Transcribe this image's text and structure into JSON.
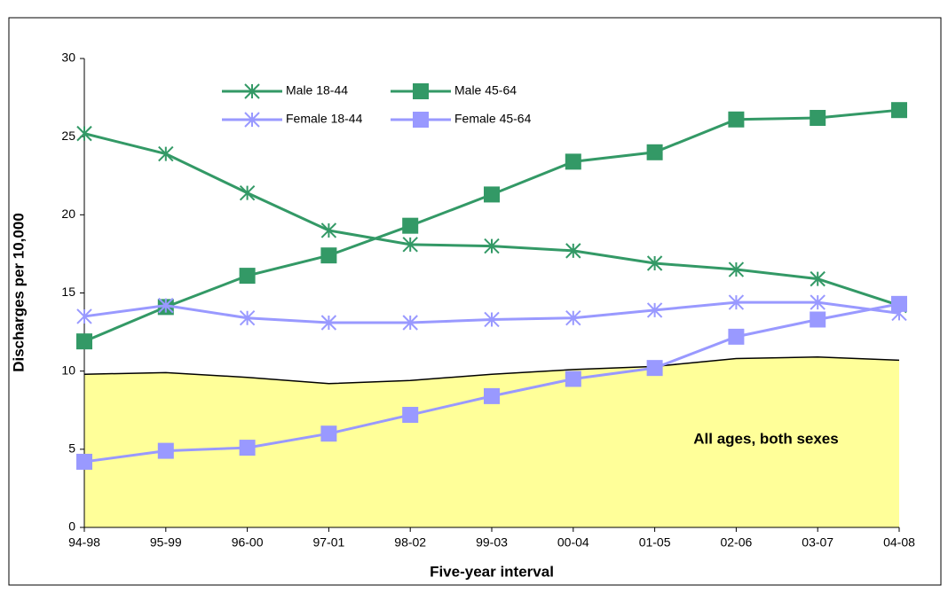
{
  "chart_data": {
    "type": "line",
    "x_label": "Five-year interval",
    "y_label": "Discharges per 10,000",
    "categories": [
      "94-98",
      "95-99",
      "96-00",
      "97-01",
      "98-02",
      "99-03",
      "00-04",
      "01-05",
      "02-06",
      "03-07",
      "04-08"
    ],
    "ylim": [
      0,
      30
    ],
    "yticks": [
      0,
      5,
      10,
      15,
      20,
      25,
      30
    ],
    "area": {
      "name": "All ages, both sexes",
      "color": "#ffff99",
      "values": [
        9.8,
        9.9,
        9.6,
        9.2,
        9.4,
        9.8,
        10.1,
        10.3,
        10.8,
        10.9,
        10.7
      ]
    },
    "series": [
      {
        "name": "Male 18-44",
        "color": "#339966",
        "marker": "star",
        "values": [
          25.2,
          23.9,
          21.4,
          19.0,
          18.1,
          18.0,
          17.7,
          16.9,
          16.5,
          15.9,
          14.2
        ]
      },
      {
        "name": "Male 45-64",
        "color": "#339966",
        "marker": "square",
        "values": [
          11.9,
          14.1,
          16.1,
          17.4,
          19.3,
          21.3,
          23.4,
          24.0,
          26.1,
          26.2,
          26.7
        ]
      },
      {
        "name": "Female 18-44",
        "color": "#9999ff",
        "marker": "star",
        "values": [
          13.5,
          14.2,
          13.4,
          13.1,
          13.1,
          13.3,
          13.4,
          13.9,
          14.4,
          14.4,
          13.7
        ]
      },
      {
        "name": "Female 45-64",
        "color": "#9999ff",
        "marker": "square",
        "values": [
          4.2,
          4.9,
          5.1,
          6.0,
          7.2,
          8.4,
          9.5,
          10.2,
          12.2,
          13.3,
          14.3
        ]
      }
    ]
  }
}
